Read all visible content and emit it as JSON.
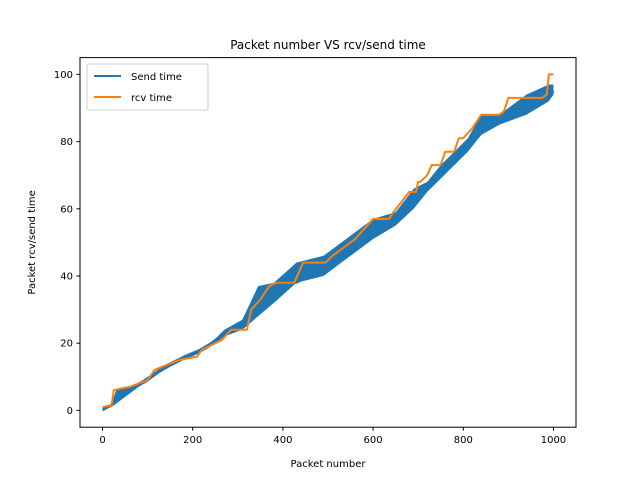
{
  "chart_data": {
    "type": "line",
    "title": "Packet number VS rcv/send time",
    "xlabel": "Packet number",
    "ylabel": "Packet rcv/send time",
    "xlim": [
      -50,
      1050
    ],
    "ylim": [
      -5,
      105
    ],
    "xticks": [
      0,
      200,
      400,
      600,
      800,
      1000
    ],
    "yticks": [
      0,
      20,
      40,
      60,
      80,
      100
    ],
    "grid": false,
    "legend_position": "top-left",
    "series": [
      {
        "name": "Send time",
        "color": "#1f77b4",
        "x": [
          0,
          20,
          30,
          45,
          60,
          80,
          100,
          125,
          150,
          180,
          215,
          240,
          270,
          310,
          345,
          380,
          400,
          430,
          490,
          550,
          600,
          650,
          690,
          720,
          750,
          780,
          810,
          840,
          880,
          940,
          990,
          1000
        ],
        "y": [
          0,
          1.5,
          3,
          4.5,
          6,
          8,
          9.5,
          12,
          14,
          16,
          18,
          20,
          23,
          26,
          32,
          36,
          37,
          38,
          42,
          48,
          52,
          56,
          62,
          66,
          70,
          74,
          78,
          83,
          86,
          89,
          93,
          95
        ]
      },
      {
        "name": "rcv time",
        "color": "#ff7f0e",
        "x": [
          0,
          20,
          25,
          40,
          60,
          80,
          100,
          115,
          150,
          170,
          210,
          220,
          265,
          285,
          320,
          330,
          350,
          370,
          385,
          425,
          445,
          495,
          510,
          560,
          600,
          635,
          645,
          680,
          695,
          700,
          705,
          720,
          730,
          750,
          760,
          780,
          790,
          800,
          820,
          840,
          850,
          880,
          890,
          900,
          975,
          985,
          990,
          1000
        ],
        "y": [
          1,
          1.5,
          6,
          6.5,
          7,
          8,
          9,
          12,
          14,
          15,
          16,
          18,
          21,
          24,
          24,
          30,
          33,
          37,
          38,
          38,
          44,
          44,
          46,
          51,
          57,
          57,
          59,
          65,
          65,
          68,
          68,
          70,
          73,
          73,
          77,
          77,
          81,
          81,
          84,
          88,
          88,
          88,
          89,
          93,
          93,
          94,
          100,
          100
        ]
      }
    ],
    "bands": [
      {
        "color": "#1f77b4",
        "x": [
          0,
          20,
          30,
          45,
          60,
          80,
          100,
          125,
          150,
          180,
          215,
          240,
          270,
          310,
          345,
          380,
          430,
          490,
          550,
          600,
          650,
          690,
          720,
          750,
          780,
          810,
          840,
          880,
          940,
          990,
          1000
        ],
        "lower": [
          0,
          1,
          2,
          3.5,
          5,
          7,
          8.5,
          11,
          13,
          15,
          17,
          19,
          22,
          24,
          28,
          32,
          38,
          40,
          46,
          51,
          55,
          60,
          65,
          69,
          73,
          77,
          82,
          85,
          88,
          92,
          94
        ],
        "upper": [
          1,
          2,
          6,
          6.5,
          7,
          8,
          10,
          12,
          14,
          16,
          18,
          20,
          24,
          27,
          37,
          38,
          44,
          46,
          52,
          57,
          59,
          66,
          68,
          73,
          77,
          81,
          88,
          88,
          94,
          97,
          97
        ]
      }
    ]
  }
}
